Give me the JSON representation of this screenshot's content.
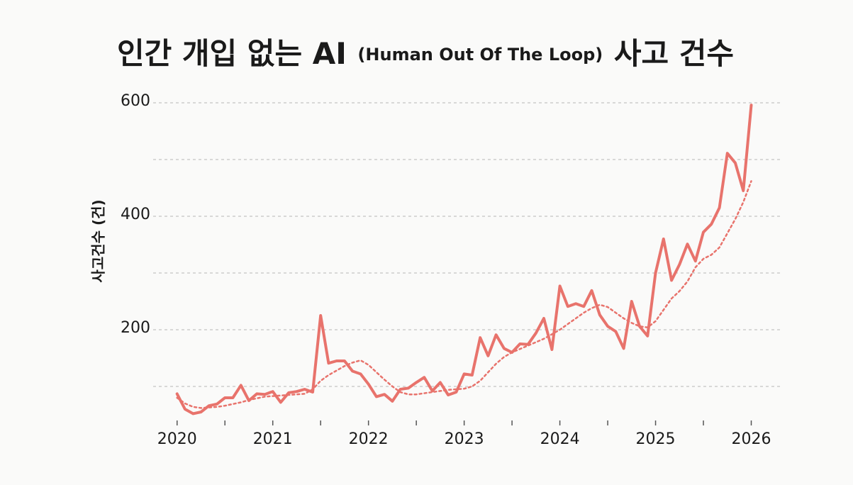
{
  "chart_data": {
    "type": "line",
    "title": "인간 개입 없는 AI",
    "subtitle": "(Human Out Of The Loop)",
    "title_end": "사고 건수",
    "ylabel": "사고건수 (건)",
    "x": [
      2020,
      2020.083,
      2020.167,
      2020.25,
      2020.333,
      2020.417,
      2020.5,
      2020.583,
      2020.667,
      2020.75,
      2020.833,
      2020.917,
      2021,
      2021.083,
      2021.167,
      2021.25,
      2021.333,
      2021.417,
      2021.5,
      2021.583,
      2021.667,
      2021.75,
      2021.833,
      2021.917,
      2022,
      2022.083,
      2022.167,
      2022.25,
      2022.333,
      2022.417,
      2022.5,
      2022.583,
      2022.667,
      2022.75,
      2022.833,
      2022.917,
      2023,
      2023.083,
      2023.167,
      2023.25,
      2023.333,
      2023.417,
      2023.5,
      2023.583,
      2023.667,
      2023.75,
      2023.833,
      2023.917,
      2024,
      2024.083,
      2024.167,
      2024.25,
      2024.333,
      2024.417,
      2024.5,
      2024.583,
      2024.667,
      2024.75,
      2024.833,
      2024.917,
      2025,
      2025.083,
      2025.167,
      2025.25,
      2025.333,
      2025.417,
      2025.5,
      2025.583,
      2025.667,
      2025.75,
      2025.833,
      2025.917,
      2026
    ],
    "series": [
      {
        "color": "#e8736c",
        "linestyle": "solid",
        "values": [
          87,
          60,
          52,
          55,
          66,
          69,
          80,
          80,
          102,
          75,
          87,
          86,
          91,
          72,
          89,
          91,
          95,
          90,
          225,
          141,
          145,
          145,
          127,
          122,
          104,
          82,
          86,
          74,
          95,
          97,
          107,
          116,
          92,
          107,
          85,
          90,
          122,
          120,
          186,
          154,
          191,
          167,
          160,
          175,
          174,
          194,
          220,
          165,
          277,
          241,
          246,
          241,
          269,
          226,
          206,
          197,
          167,
          250,
          206,
          189,
          300,
          360,
          287,
          315,
          351,
          321,
          372,
          386,
          415,
          511,
          494,
          445,
          596
        ]
      },
      {
        "color": "#e8736c",
        "linestyle": "dotted",
        "values": [
          80,
          70,
          64,
          62,
          63,
          64,
          66,
          69,
          72,
          76,
          79,
          82,
          83,
          84,
          85,
          86,
          87,
          95,
          110,
          120,
          128,
          136,
          142,
          146,
          138,
          125,
          112,
          100,
          90,
          86,
          86,
          88,
          90,
          92,
          94,
          95,
          96,
          100,
          110,
          125,
          140,
          152,
          160,
          166,
          172,
          178,
          184,
          192,
          200,
          210,
          220,
          230,
          238,
          244,
          240,
          230,
          220,
          212,
          206,
          204,
          215,
          235,
          255,
          268,
          285,
          310,
          325,
          332,
          345,
          370,
          395,
          425,
          462
        ]
      }
    ],
    "xlim": [
      2019.75,
      2026.3
    ],
    "xticks": [
      2020,
      2021,
      2022,
      2023,
      2024,
      2025,
      2026
    ],
    "xminorticks": [
      2020.5,
      2021.5,
      2022.5,
      2023.5,
      2024.5,
      2025.5
    ],
    "ylim": [
      40,
      620
    ],
    "yticks": [
      200,
      400,
      600
    ],
    "ygrid": [
      100,
      200,
      300,
      400,
      500,
      600
    ]
  }
}
